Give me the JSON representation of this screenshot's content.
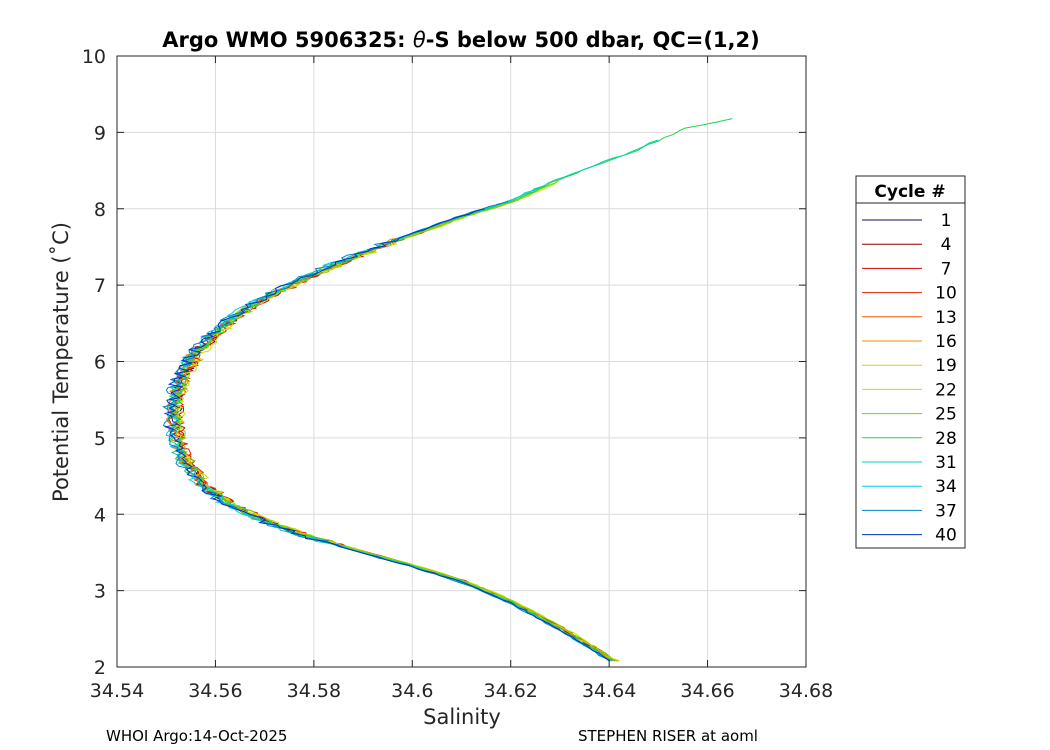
{
  "chart_data": {
    "type": "line",
    "title": "Argo WMO 5906325: θ-S below 500 dbar,  QC=(1,2)",
    "title_parts": {
      "prefix": "Argo WMO 5906325: ",
      "theta": "θ",
      "suffix": "-S below 500 dbar,  QC=(1,2)"
    },
    "xlabel": "Salinity",
    "ylabel": "Potential Temperature (˚C)",
    "xlim": [
      34.54,
      34.68
    ],
    "ylim": [
      2,
      10
    ],
    "x_ticks": [
      34.54,
      34.56,
      34.58,
      34.6,
      34.62,
      34.64,
      34.66,
      34.68
    ],
    "x_tick_labels": [
      "34.54",
      "34.56",
      "34.58",
      "34.6",
      "34.62",
      "34.64",
      "34.66",
      "34.68"
    ],
    "y_ticks": [
      2,
      3,
      4,
      5,
      6,
      7,
      8,
      9,
      10
    ],
    "y_tick_labels": [
      "2",
      "3",
      "4",
      "5",
      "6",
      "7",
      "8",
      "9",
      "10"
    ],
    "grid": true,
    "legend": {
      "title": "Cycle #",
      "placement": "right",
      "entries": [
        "1",
        "4",
        "7",
        "10",
        "13",
        "16",
        "19",
        "22",
        "25",
        "28",
        "31",
        "34",
        "37",
        "40"
      ],
      "colors": [
        "#1a0a5a",
        "#8b0000",
        "#d40000",
        "#e81c00",
        "#f05a00",
        "#f08c00",
        "#e8c800",
        "#c8e000",
        "#7ad400",
        "#22d24a",
        "#00d2b4",
        "#00c8e6",
        "#0082c8",
        "#0032c8"
      ]
    },
    "series": [
      {
        "name": "1",
        "t_max": 8.05,
        "s_shift": 0.0006
      },
      {
        "name": "4",
        "t_max": 7.95,
        "s_shift": 0.0003
      },
      {
        "name": "7",
        "t_max": 7.85,
        "s_shift": 0.001
      },
      {
        "name": "10",
        "t_max": 7.9,
        "s_shift": 0.0008
      },
      {
        "name": "13",
        "t_max": 7.75,
        "s_shift": 0.0004
      },
      {
        "name": "16",
        "t_max": 7.8,
        "s_shift": 0.0
      },
      {
        "name": "19",
        "t_max": 8.3,
        "s_shift": 0.0007
      },
      {
        "name": "22",
        "t_max": 8.35,
        "s_shift": 0.0012
      },
      {
        "name": "25",
        "t_max": 8.45,
        "s_shift": 0.0009
      },
      {
        "name": "28",
        "t_max": 9.18,
        "s_shift": 0.0002
      },
      {
        "name": "31",
        "t_max": 8.9,
        "s_shift": -0.0002
      },
      {
        "name": "34",
        "t_max": 8.28,
        "s_shift": -0.0004
      },
      {
        "name": "37",
        "t_max": 8.1,
        "s_shift": -0.0006
      },
      {
        "name": "40",
        "t_max": 8.0,
        "s_shift": -0.0003
      }
    ],
    "curve": [
      [
        34.6405,
        2.08
      ],
      [
        34.63,
        2.5
      ],
      [
        34.62,
        2.85
      ],
      [
        34.61,
        3.12
      ],
      [
        34.6,
        3.32
      ],
      [
        34.59,
        3.5
      ],
      [
        34.58,
        3.68
      ],
      [
        34.57,
        3.9
      ],
      [
        34.562,
        4.15
      ],
      [
        34.557,
        4.4
      ],
      [
        34.553,
        4.75
      ],
      [
        34.5515,
        5.1
      ],
      [
        34.5512,
        5.4
      ],
      [
        34.5525,
        5.75
      ],
      [
        34.5555,
        6.1
      ],
      [
        34.56,
        6.4
      ],
      [
        34.566,
        6.7
      ],
      [
        34.575,
        7.0
      ],
      [
        34.585,
        7.3
      ],
      [
        34.597,
        7.6
      ],
      [
        34.61,
        7.9
      ],
      [
        34.62,
        8.1
      ],
      [
        34.63,
        8.4
      ],
      [
        34.645,
        8.75
      ],
      [
        34.655,
        9.05
      ],
      [
        34.665,
        9.18
      ]
    ]
  },
  "footer": {
    "left": "WHOI Argo:14-Oct-2025",
    "right": "STEPHEN RISER at aoml"
  }
}
